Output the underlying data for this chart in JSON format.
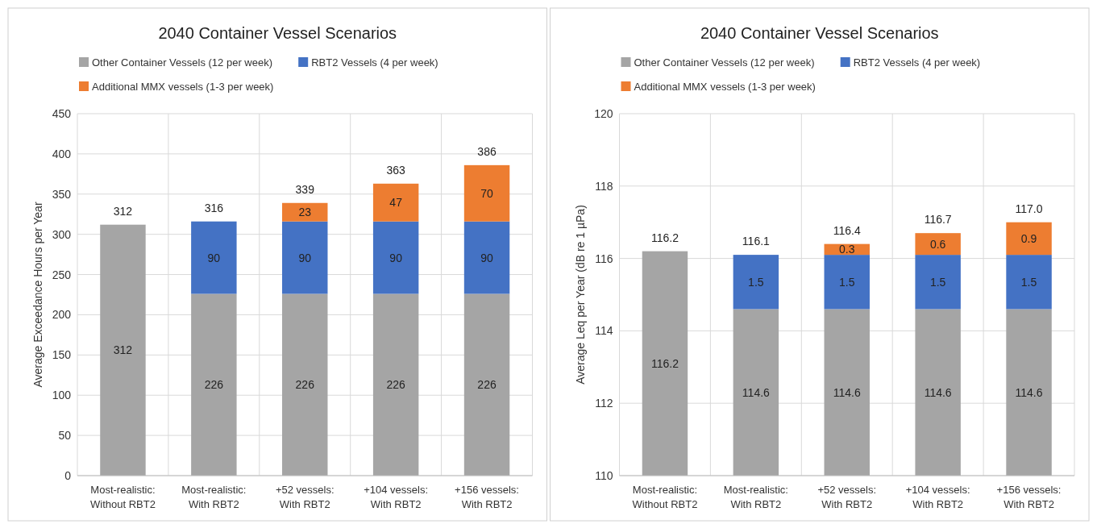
{
  "chart_data": [
    {
      "type": "bar",
      "title": "2040 Container Vessel Scenarios",
      "ylabel": "Average Exceedance Hours per Year",
      "categories": [
        "Most-realistic: Without RBT2",
        "Most-realistic: With RBT2",
        "+52 vessels: With RBT2",
        "+104 vessels: With RBT2",
        "+156 vessels: With RBT2"
      ],
      "stacked": true,
      "series": [
        {
          "name": "Other Container Vessels (12 per week)",
          "color": "#a5a5a5",
          "values": [
            312,
            226,
            226,
            226,
            226
          ]
        },
        {
          "name": "RBT2 Vessels (4 per week)",
          "color": "#4472c4",
          "values": [
            null,
            90,
            90,
            90,
            90
          ]
        },
        {
          "name": "Additional MMX vessels (1-3 per week)",
          "color": "#ed7d31",
          "values": [
            null,
            null,
            23,
            47,
            70
          ]
        }
      ],
      "totals": [
        "312",
        "316",
        "339",
        "363",
        "386"
      ],
      "data_labels": true,
      "ylim": [
        0,
        450
      ],
      "yticks": [
        0,
        50,
        100,
        150,
        200,
        250,
        300,
        350,
        400,
        450
      ],
      "grid": true,
      "legend": "top"
    },
    {
      "type": "bar",
      "title": "2040 Container Vessel Scenarios",
      "ylabel": "Average Leq per Year (dB re 1 µPa)",
      "categories": [
        "Most-realistic: Without RBT2",
        "Most-realistic: With RBT2",
        "+52 vessels: With RBT2",
        "+104 vessels: With RBT2",
        "+156 vessels: With RBT2"
      ],
      "stacked": true,
      "series": [
        {
          "name": "Other Container Vessels (12 per week)",
          "color": "#a5a5a5",
          "values": [
            116.2,
            114.6,
            114.6,
            114.6,
            114.6
          ]
        },
        {
          "name": "RBT2 Vessels (4 per week)",
          "color": "#4472c4",
          "values": [
            null,
            1.5,
            1.5,
            1.5,
            1.5
          ],
          "base": [
            null,
            114.6,
            114.6,
            114.6,
            114.6
          ]
        },
        {
          "name": "Additional MMX vessels (1-3 per week)",
          "color": "#ed7d31",
          "values": [
            null,
            null,
            0.3,
            0.6,
            0.9
          ],
          "base": [
            null,
            null,
            116.1,
            116.1,
            116.1
          ]
        }
      ],
      "totals": [
        "116.2",
        "116.1",
        "116.4",
        "116.7",
        "117.0"
      ],
      "data_labels": true,
      "ylim": [
        110,
        120
      ],
      "yticks": [
        110,
        112,
        114,
        116,
        118,
        120
      ],
      "grid": true,
      "legend": "top"
    }
  ]
}
